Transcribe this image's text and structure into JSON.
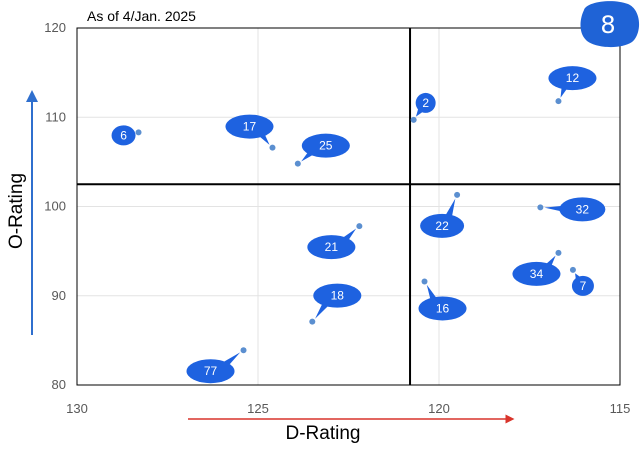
{
  "chart_data": {
    "type": "scatter",
    "subtitle": "As of 4/Jan. 2025",
    "badge": "8",
    "xlabel": "D-Rating",
    "ylabel": "O-Rating",
    "x_reversed": true,
    "xlim": [
      130,
      115
    ],
    "ylim": [
      80,
      120
    ],
    "xticks": [
      130,
      125,
      120,
      115
    ],
    "yticks": [
      80,
      90,
      100,
      110,
      120
    ],
    "grid": true,
    "quadrant_lines": {
      "x": 120.8,
      "y": 102.5
    },
    "marker_color": "#5b8fd0",
    "callout_color": "#1e62e0",
    "points": [
      {
        "label": "6",
        "x": 128.3,
        "y": 108.3
      },
      {
        "label": "17",
        "x": 124.6,
        "y": 106.6
      },
      {
        "label": "25",
        "x": 123.9,
        "y": 104.8
      },
      {
        "label": "2",
        "x": 120.7,
        "y": 109.7
      },
      {
        "label": "12",
        "x": 116.7,
        "y": 111.8
      },
      {
        "label": "22",
        "x": 119.5,
        "y": 101.3
      },
      {
        "label": "32",
        "x": 117.2,
        "y": 99.9
      },
      {
        "label": "21",
        "x": 122.2,
        "y": 97.8
      },
      {
        "label": "34",
        "x": 116.7,
        "y": 94.8
      },
      {
        "label": "7",
        "x": 116.3,
        "y": 92.9
      },
      {
        "label": "16",
        "x": 120.4,
        "y": 91.6
      },
      {
        "label": "18",
        "x": 123.5,
        "y": 87.1
      },
      {
        "label": "77",
        "x": 125.4,
        "y": 83.9
      }
    ]
  }
}
